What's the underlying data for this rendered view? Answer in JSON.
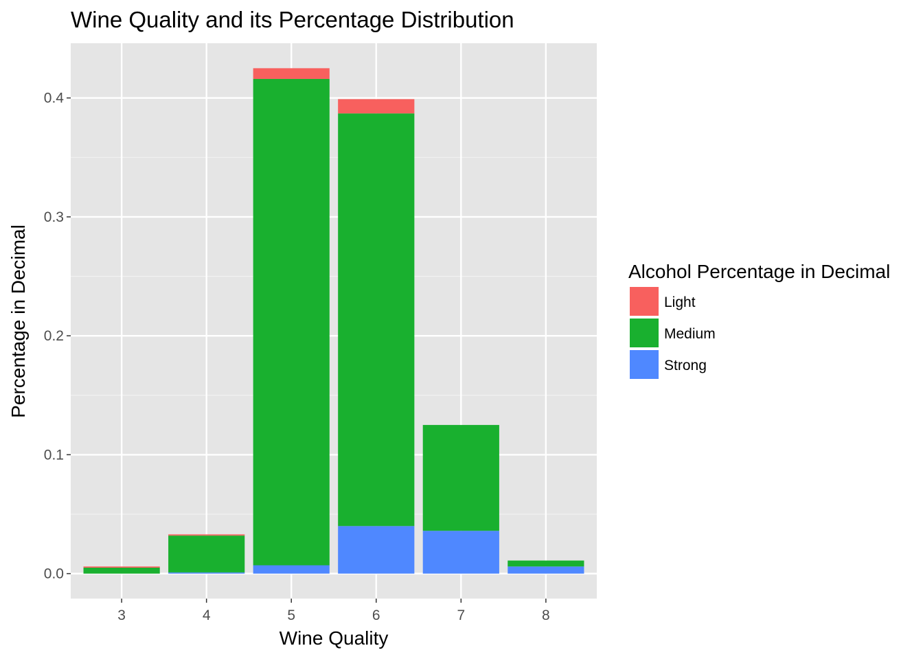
{
  "chart_data": {
    "type": "bar",
    "stacked": true,
    "title": "Wine Quality and its Percentage Distribution",
    "xlabel": "Wine Quality",
    "ylabel": "Percentage in Decimal",
    "categories": [
      "3",
      "4",
      "5",
      "6",
      "7",
      "8"
    ],
    "ylim": [
      -0.021,
      0.446
    ],
    "yticks": [
      0.0,
      0.1,
      0.2,
      0.3,
      0.4
    ],
    "ytick_labels": [
      "0.0",
      "0.1",
      "0.2",
      "0.3",
      "0.4"
    ],
    "grid": true,
    "legend": {
      "title": "Alcohol Percentage in Decimal",
      "position": "right"
    },
    "series": [
      {
        "name": "Strong",
        "color": "#4f88ff",
        "values": [
          0.0,
          0.001,
          0.007,
          0.04,
          0.036,
          0.006
        ]
      },
      {
        "name": "Medium",
        "color": "#19b02f",
        "values": [
          0.005,
          0.031,
          0.409,
          0.347,
          0.089,
          0.005
        ]
      },
      {
        "name": "Light",
        "color": "#f8605e",
        "values": [
          0.001,
          0.001,
          0.009,
          0.012,
          0.0,
          0.0
        ]
      }
    ],
    "legend_order": [
      "Light",
      "Medium",
      "Strong"
    ]
  }
}
